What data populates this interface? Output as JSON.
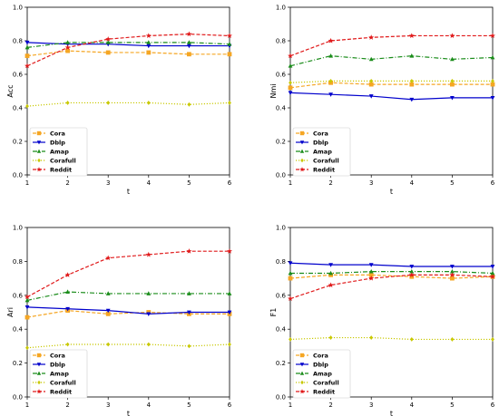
{
  "chart_data": [
    {
      "type": "line",
      "x": [
        1,
        2,
        3,
        4,
        5,
        6
      ],
      "xlabel": "t",
      "ylabel": "Acc",
      "xlim": [
        1,
        6
      ],
      "ylim": [
        0,
        1
      ],
      "xticks": [
        "1",
        "2",
        "3",
        "4",
        "5",
        "6"
      ],
      "yticks": [
        "0.0",
        "0.2",
        "0.4",
        "0.6",
        "0.8",
        "1.0"
      ],
      "legend": "bottom-left",
      "series": [
        {
          "name": "Cora",
          "color": "#f5a623",
          "marker": "square",
          "linestyle": "dashed",
          "values": [
            0.71,
            0.74,
            0.73,
            0.73,
            0.72,
            0.72
          ]
        },
        {
          "name": "Dblp",
          "color": "#0000cc",
          "marker": "triangle-down",
          "linestyle": "solid",
          "values": [
            0.79,
            0.78,
            0.78,
            0.77,
            0.77,
            0.77
          ]
        },
        {
          "name": "Amap",
          "color": "#1a8c1a",
          "marker": "triangle-up",
          "linestyle": "dashdot",
          "values": [
            0.76,
            0.79,
            0.79,
            0.79,
            0.79,
            0.78
          ]
        },
        {
          "name": "Corafull",
          "color": "#c8c800",
          "marker": "diamond",
          "linestyle": "dotted",
          "values": [
            0.41,
            0.43,
            0.43,
            0.43,
            0.42,
            0.43
          ]
        },
        {
          "name": "Reddit",
          "color": "#e0191a",
          "marker": "star",
          "linestyle": "dashed",
          "values": [
            0.65,
            0.76,
            0.81,
            0.83,
            0.84,
            0.83
          ]
        }
      ]
    },
    {
      "type": "line",
      "x": [
        1,
        2,
        3,
        4,
        5,
        6
      ],
      "xlabel": "t",
      "ylabel": "Nmi",
      "xlim": [
        1,
        6
      ],
      "ylim": [
        0,
        1
      ],
      "xticks": [
        "1",
        "2",
        "3",
        "4",
        "5",
        "6"
      ],
      "yticks": [
        "0.0",
        "0.2",
        "0.4",
        "0.6",
        "0.8",
        "1.0"
      ],
      "legend": "bottom-left",
      "series": [
        {
          "name": "Cora",
          "color": "#f5a623",
          "marker": "square",
          "linestyle": "dashed",
          "values": [
            0.52,
            0.55,
            0.54,
            0.54,
            0.54,
            0.54
          ]
        },
        {
          "name": "Dblp",
          "color": "#0000cc",
          "marker": "triangle-down",
          "linestyle": "solid",
          "values": [
            0.49,
            0.48,
            0.47,
            0.45,
            0.46,
            0.46
          ]
        },
        {
          "name": "Amap",
          "color": "#1a8c1a",
          "marker": "triangle-up",
          "linestyle": "dashdot",
          "values": [
            0.65,
            0.71,
            0.69,
            0.71,
            0.69,
            0.7
          ]
        },
        {
          "name": "Corafull",
          "color": "#c8c800",
          "marker": "diamond",
          "linestyle": "dotted",
          "values": [
            0.55,
            0.56,
            0.56,
            0.56,
            0.56,
            0.56
          ]
        },
        {
          "name": "Reddit",
          "color": "#e0191a",
          "marker": "star",
          "linestyle": "dashed",
          "values": [
            0.71,
            0.8,
            0.82,
            0.83,
            0.83,
            0.83
          ]
        }
      ]
    },
    {
      "type": "line",
      "x": [
        1,
        2,
        3,
        4,
        5,
        6
      ],
      "xlabel": "t",
      "ylabel": "Ari",
      "xlim": [
        1,
        6
      ],
      "ylim": [
        0,
        1
      ],
      "xticks": [
        "1",
        "2",
        "3",
        "4",
        "5",
        "6"
      ],
      "yticks": [
        "0.0",
        "0.2",
        "0.4",
        "0.6",
        "0.8",
        "1.0"
      ],
      "legend": "bottom-left",
      "series": [
        {
          "name": "Cora",
          "color": "#f5a623",
          "marker": "square",
          "linestyle": "dashed",
          "values": [
            0.47,
            0.51,
            0.49,
            0.5,
            0.49,
            0.49
          ]
        },
        {
          "name": "Dblp",
          "color": "#0000cc",
          "marker": "triangle-down",
          "linestyle": "solid",
          "values": [
            0.53,
            0.52,
            0.51,
            0.49,
            0.5,
            0.5
          ]
        },
        {
          "name": "Amap",
          "color": "#1a8c1a",
          "marker": "triangle-up",
          "linestyle": "dashdot",
          "values": [
            0.57,
            0.62,
            0.61,
            0.61,
            0.61,
            0.61
          ]
        },
        {
          "name": "Corafull",
          "color": "#c8c800",
          "marker": "diamond",
          "linestyle": "dotted",
          "values": [
            0.29,
            0.31,
            0.31,
            0.31,
            0.3,
            0.31
          ]
        },
        {
          "name": "Reddit",
          "color": "#e0191a",
          "marker": "star",
          "linestyle": "dashed",
          "values": [
            0.59,
            0.72,
            0.82,
            0.84,
            0.86,
            0.86
          ]
        }
      ]
    },
    {
      "type": "line",
      "x": [
        1,
        2,
        3,
        4,
        5,
        6
      ],
      "xlabel": "t",
      "ylabel": "F1",
      "xlim": [
        1,
        6
      ],
      "ylim": [
        0,
        1
      ],
      "xticks": [
        "1",
        "2",
        "3",
        "4",
        "5",
        "6"
      ],
      "yticks": [
        "0.0",
        "0.2",
        "0.4",
        "0.6",
        "0.8",
        "1.0"
      ],
      "legend": "bottom-left",
      "series": [
        {
          "name": "Cora",
          "color": "#f5a623",
          "marker": "square",
          "linestyle": "dashed",
          "values": [
            0.7,
            0.72,
            0.72,
            0.71,
            0.7,
            0.71
          ]
        },
        {
          "name": "Dblp",
          "color": "#0000cc",
          "marker": "triangle-down",
          "linestyle": "solid",
          "values": [
            0.79,
            0.78,
            0.78,
            0.77,
            0.77,
            0.77
          ]
        },
        {
          "name": "Amap",
          "color": "#1a8c1a",
          "marker": "triangle-up",
          "linestyle": "dashdot",
          "values": [
            0.73,
            0.73,
            0.74,
            0.74,
            0.74,
            0.73
          ]
        },
        {
          "name": "Corafull",
          "color": "#c8c800",
          "marker": "diamond",
          "linestyle": "dotted",
          "values": [
            0.34,
            0.35,
            0.35,
            0.34,
            0.34,
            0.34
          ]
        },
        {
          "name": "Reddit",
          "color": "#e0191a",
          "marker": "star",
          "linestyle": "dashed",
          "values": [
            0.58,
            0.66,
            0.7,
            0.72,
            0.72,
            0.71
          ]
        }
      ]
    }
  ]
}
